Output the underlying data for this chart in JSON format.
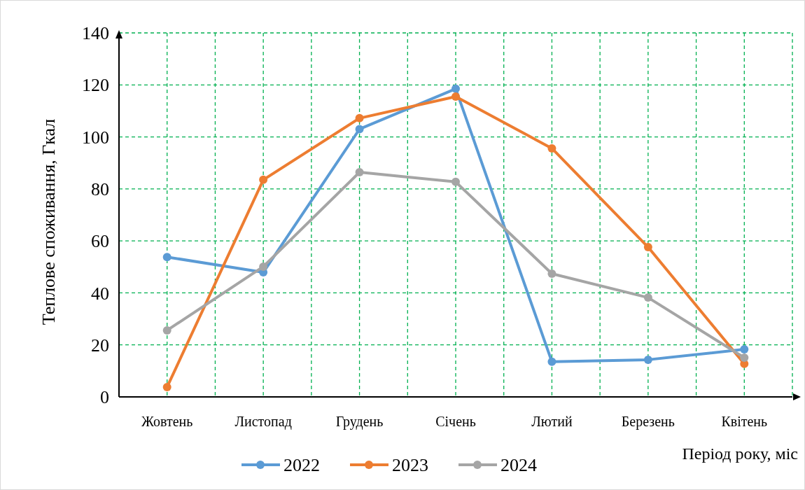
{
  "chart_data": {
    "type": "line",
    "xlabel": "Період року, міс",
    "ylabel": "Теплове споживання, Гкал",
    "categories": [
      "Жовтень",
      "Листопад",
      "Грудень",
      "Січень",
      "Лютий",
      "Березень",
      "Квітень"
    ],
    "series": [
      {
        "name": "2022",
        "color": "#5b9bd5",
        "values": [
          53.8,
          47.9,
          103,
          118.5,
          13.5,
          14.3,
          18.3
        ]
      },
      {
        "name": "2023",
        "color": "#ed7d31",
        "values": [
          3.8,
          83.5,
          107.2,
          115.5,
          95.6,
          57.6,
          12.7
        ]
      },
      {
        "name": "2024",
        "color": "#a5a5a5",
        "values": [
          25.6,
          50.1,
          86.4,
          82.7,
          47.4,
          38.2,
          15.1
        ]
      }
    ],
    "ylim": [
      0,
      140
    ],
    "yticks": [
      0,
      20,
      40,
      60,
      80,
      100,
      120,
      140
    ],
    "grid": true,
    "legend": "bottom",
    "marker": "circle",
    "line_style": "solid"
  }
}
